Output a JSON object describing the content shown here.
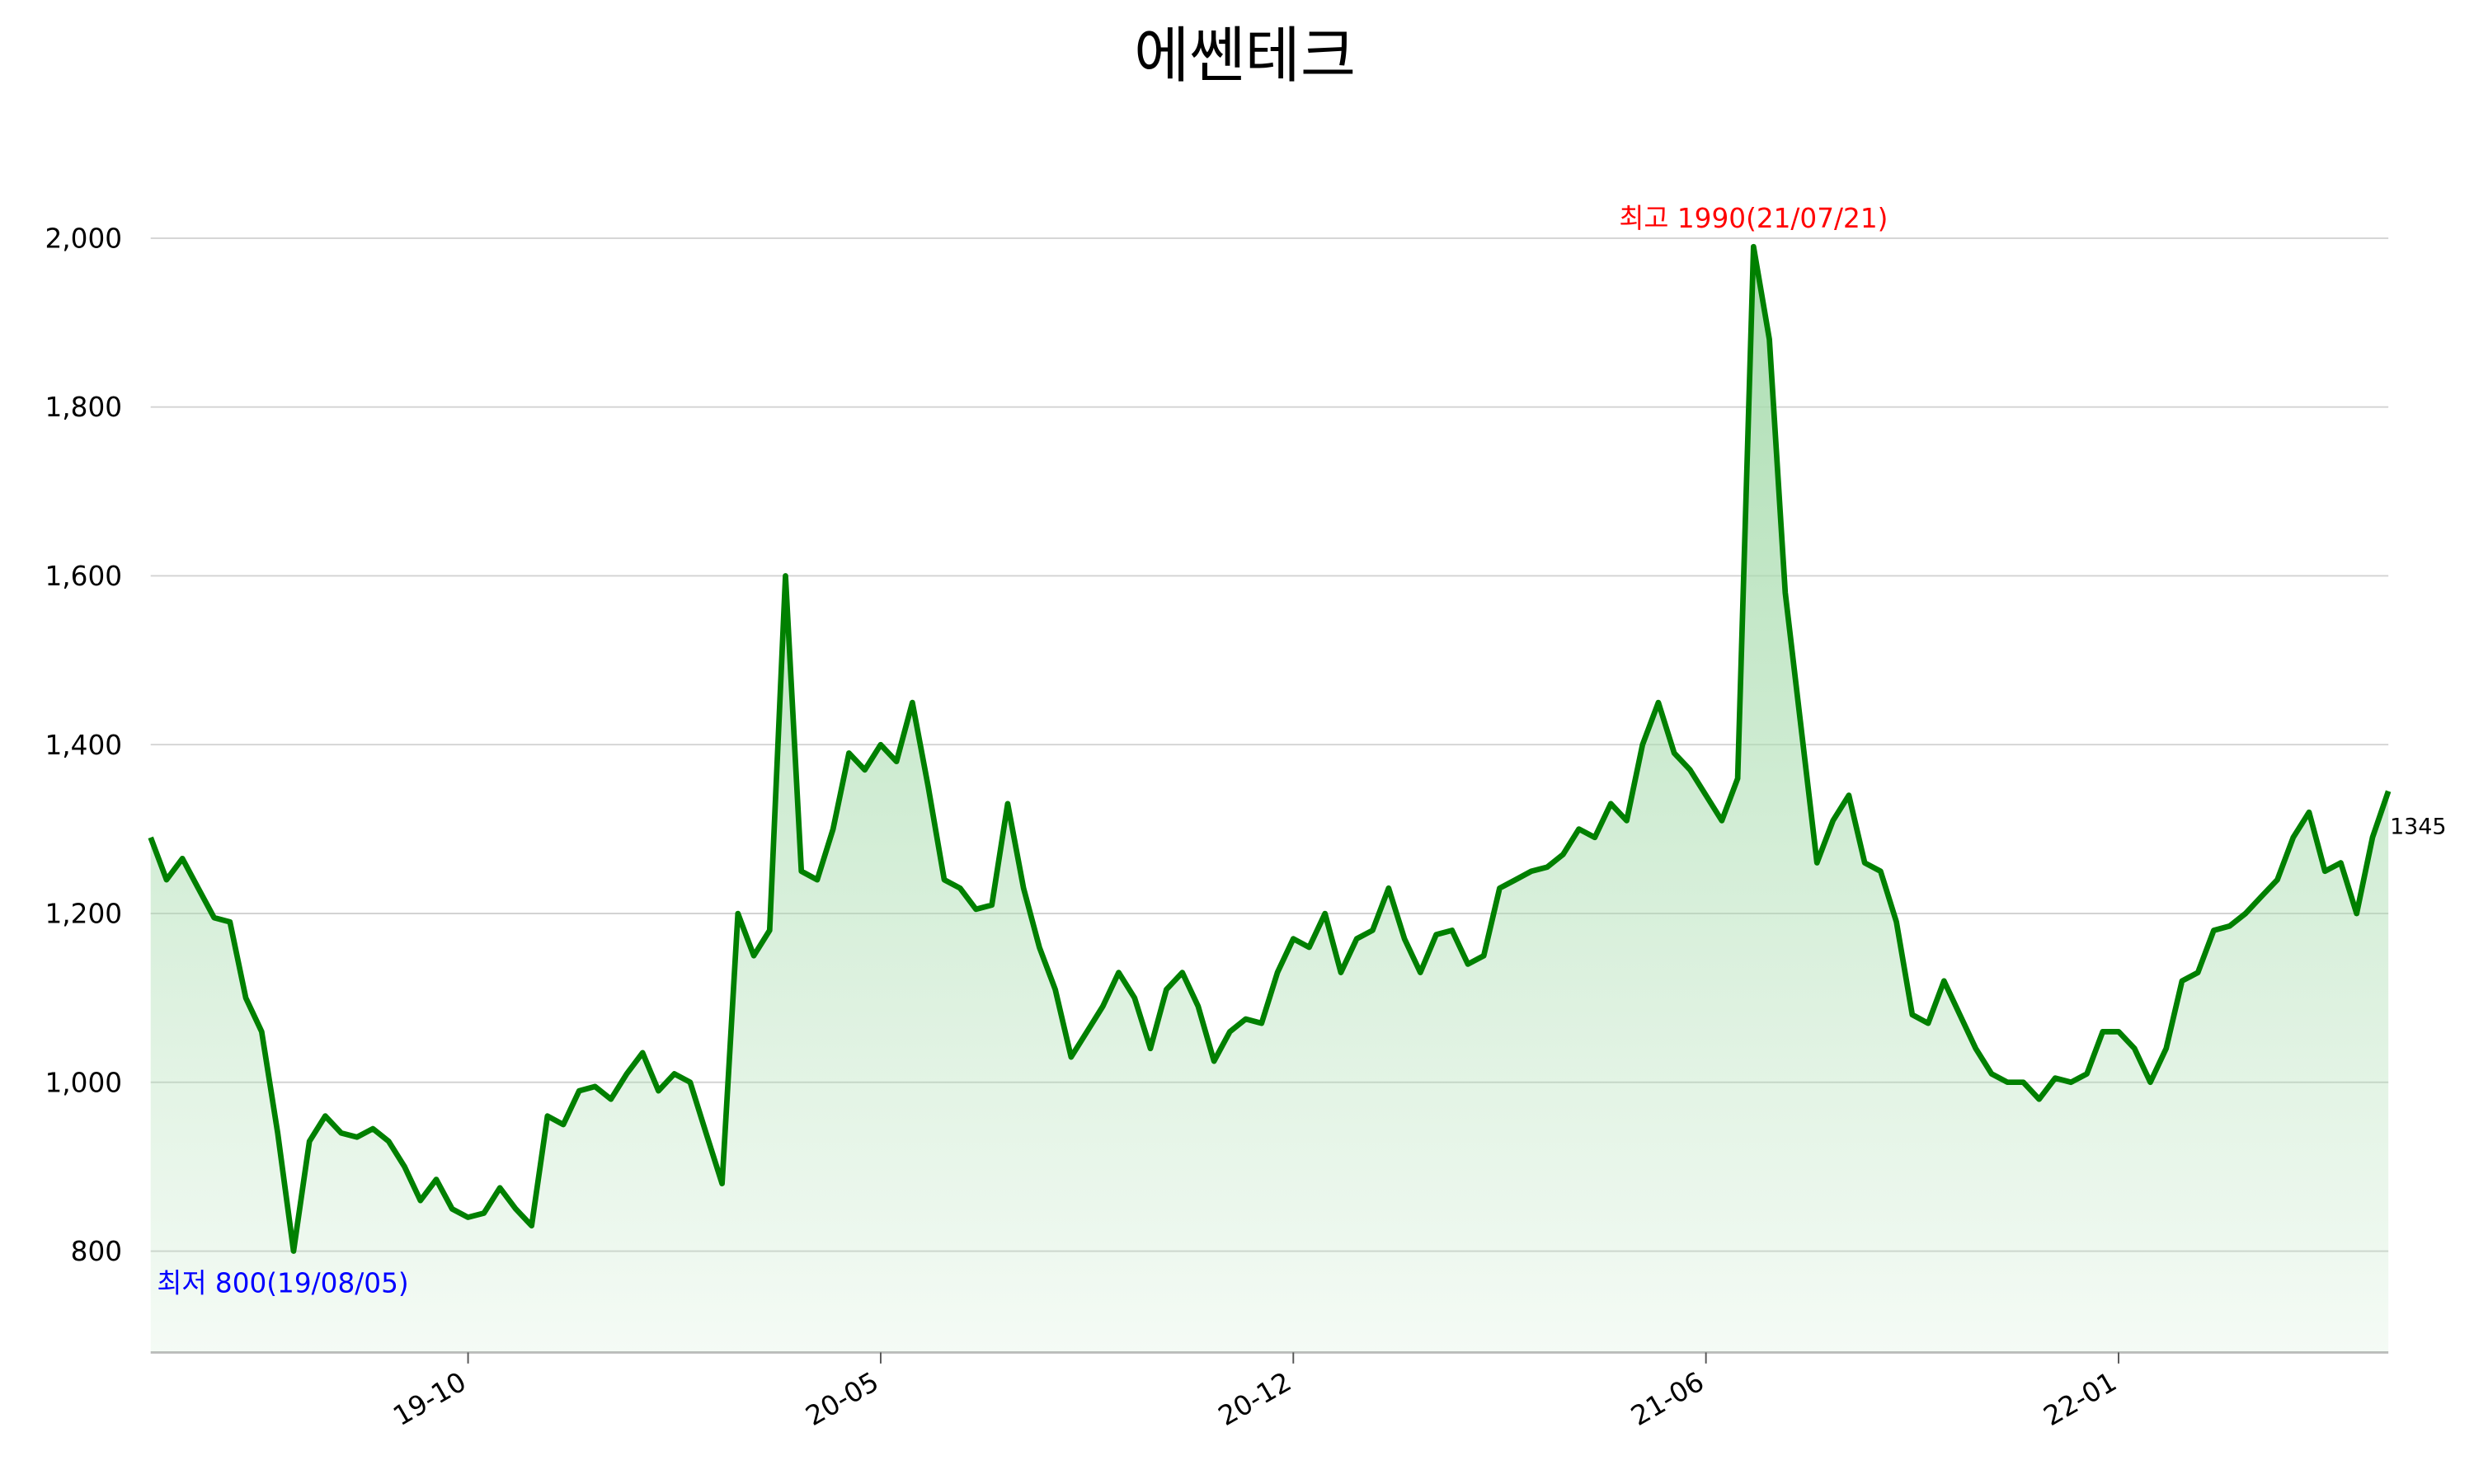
{
  "chart_data": {
    "type": "line",
    "title": "에쎈테크",
    "categories": [
      null,
      null,
      null,
      null,
      null,
      null,
      null,
      null,
      null,
      null,
      null,
      null,
      null,
      null,
      null,
      null,
      null,
      null,
      null,
      null,
      "19-10",
      null,
      null,
      null,
      null,
      null,
      null,
      null,
      null,
      null,
      null,
      null,
      null,
      null,
      null,
      null,
      null,
      null,
      null,
      null,
      null,
      null,
      null,
      null,
      null,
      null,
      "20-05",
      null,
      null,
      null,
      null,
      null,
      null,
      null,
      null,
      null,
      null,
      null,
      null,
      null,
      null,
      null,
      null,
      null,
      null,
      null,
      null,
      null,
      null,
      null,
      null,
      null,
      "20-12",
      null,
      null,
      null,
      null,
      null,
      null,
      null,
      null,
      null,
      null,
      null,
      null,
      null,
      null,
      null,
      null,
      null,
      null,
      null,
      null,
      null,
      null,
      null,
      null,
      null,
      "21-06",
      null,
      null,
      null,
      null,
      null,
      null,
      null,
      null,
      null,
      null,
      null,
      null,
      null,
      null,
      null,
      null,
      null,
      null,
      null,
      null,
      null,
      null,
      null,
      null,
      null,
      "22-01",
      null,
      null,
      null,
      null,
      null,
      null,
      null,
      null,
      null,
      null,
      null,
      null,
      null,
      null,
      null,
      null,
      null
    ],
    "values": [
      1290,
      1240,
      1265,
      1230,
      1195,
      1190,
      1100,
      1060,
      940,
      800,
      930,
      960,
      940,
      935,
      945,
      930,
      900,
      860,
      885,
      850,
      840,
      845,
      875,
      850,
      830,
      960,
      950,
      990,
      995,
      980,
      1010,
      1035,
      990,
      1010,
      1000,
      940,
      880,
      1200,
      1150,
      1180,
      1600,
      1250,
      1240,
      1300,
      1390,
      1370,
      1400,
      1380,
      1450,
      1350,
      1240,
      1230,
      1205,
      1210,
      1330,
      1230,
      1160,
      1110,
      1030,
      1060,
      1090,
      1130,
      1100,
      1040,
      1110,
      1130,
      1090,
      1025,
      1060,
      1075,
      1070,
      1130,
      1170,
      1160,
      1200,
      1130,
      1170,
      1180,
      1230,
      1170,
      1130,
      1175,
      1180,
      1140,
      1150,
      1230,
      1240,
      1250,
      1255,
      1270,
      1300,
      1290,
      1330,
      1310,
      1400,
      1450,
      1390,
      1370,
      1340,
      1310,
      1360,
      1990,
      1880,
      1580,
      1420,
      1260,
      1310,
      1340,
      1260,
      1250,
      1190,
      1080,
      1070,
      1120,
      1080,
      1040,
      1010,
      1000,
      1000,
      980,
      1005,
      1000,
      1010,
      1060,
      1060,
      1040,
      1000,
      1040,
      1120,
      1130,
      1180,
      1185,
      1200,
      1220,
      1240,
      1290,
      1320,
      1250,
      1260,
      1200,
      1290,
      1345
    ],
    "color": "#008000",
    "fill_color": "#a8dcae",
    "ylim": [
      680,
      2100
    ],
    "yticks": [
      800,
      {
        "value": 1000,
        "label": "1,000"
      },
      {
        "value": 1200,
        "label": "1,200"
      },
      {
        "value": 1400,
        "label": "1,400"
      },
      {
        "value": 1600,
        "label": "1,600"
      },
      {
        "value": 1800,
        "label": "1,800"
      },
      {
        "value": 2000,
        "label": "2,000"
      }
    ],
    "grid": true,
    "max_annotation": {
      "text": "최고 1990(21/07/21)",
      "color": "#ff0000"
    },
    "min_annotation": {
      "text": "최저 800(19/08/05)",
      "color": "#0000ff"
    }
  }
}
